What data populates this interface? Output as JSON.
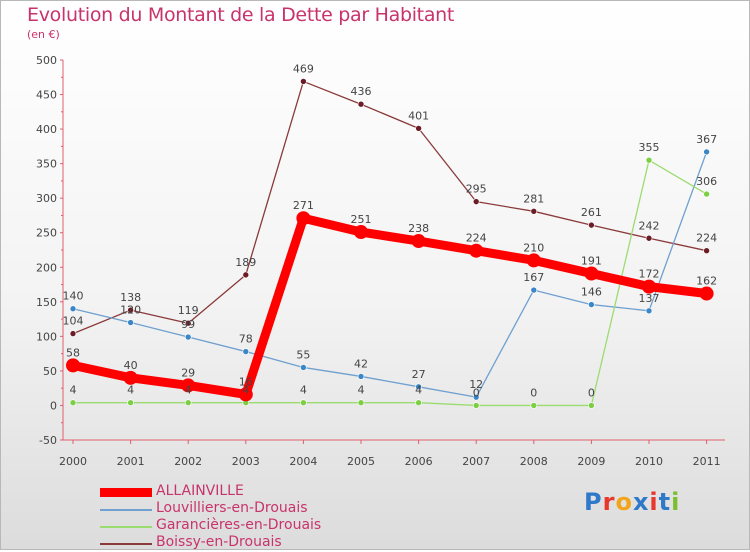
{
  "title": "Evolution du Montant de la Dette par Habitant",
  "subtitle": "(en €)",
  "logo_text": "Proxiti",
  "logo_colors": [
    "#2f79c9",
    "#e8372c",
    "#f2a51a",
    "#2f79c9",
    "#e8372c",
    "#2f79c9",
    "#7bbf2e"
  ],
  "chart_data": {
    "type": "line",
    "categories": [
      "2000",
      "2001",
      "2002",
      "2003",
      "2004",
      "2005",
      "2006",
      "2007",
      "2008",
      "2009",
      "2010",
      "2011"
    ],
    "ylim": [
      -50,
      500
    ],
    "yticks": [
      "-50",
      "0",
      "50",
      "100",
      "150",
      "200",
      "250",
      "300",
      "350",
      "400",
      "450",
      "500"
    ],
    "grid": false,
    "legend_position": "bottom-left",
    "series": [
      {
        "name": "ALLAINVILLE",
        "color": "#ff0000",
        "marker": "#ff0000",
        "width": "thick",
        "values": [
          58,
          40,
          29,
          16,
          271,
          251,
          238,
          224,
          210,
          191,
          172,
          162
        ],
        "labels": [
          "58",
          "40",
          "29",
          "16",
          "271",
          "251",
          "238",
          "224",
          "210",
          "191",
          "172",
          "162"
        ]
      },
      {
        "name": "Louvilliers-en-Drouais",
        "color": "#6fa0cf",
        "marker": "#3b86c6",
        "width": "thin",
        "values": [
          140,
          120,
          99,
          78,
          55,
          42,
          27,
          12,
          167,
          146,
          137,
          367
        ],
        "labels": [
          "140",
          "120",
          "99",
          "78",
          "55",
          "42",
          "27",
          "12",
          "167",
          "146",
          "137",
          "367"
        ]
      },
      {
        "name": "Garancières-en-Drouais",
        "color": "#9bdc70",
        "marker": "#7ccf44",
        "width": "thin",
        "values": [
          4,
          4,
          4,
          4,
          4,
          4,
          4,
          0,
          0,
          0,
          355,
          306
        ],
        "labels": [
          "4",
          "4",
          "4",
          "4",
          "4",
          "4",
          "4",
          "0",
          "0",
          "0",
          "355",
          "306"
        ]
      },
      {
        "name": "Boissy-en-Drouais",
        "color": "#8a3a3a",
        "marker": "#6b1c24",
        "width": "thin",
        "values": [
          104,
          138,
          119,
          189,
          469,
          436,
          401,
          295,
          281,
          261,
          242,
          224
        ],
        "labels": [
          "104",
          "138",
          "119",
          "189",
          "469",
          "436",
          "401",
          "295",
          "281",
          "261",
          "242",
          "224"
        ]
      }
    ]
  }
}
